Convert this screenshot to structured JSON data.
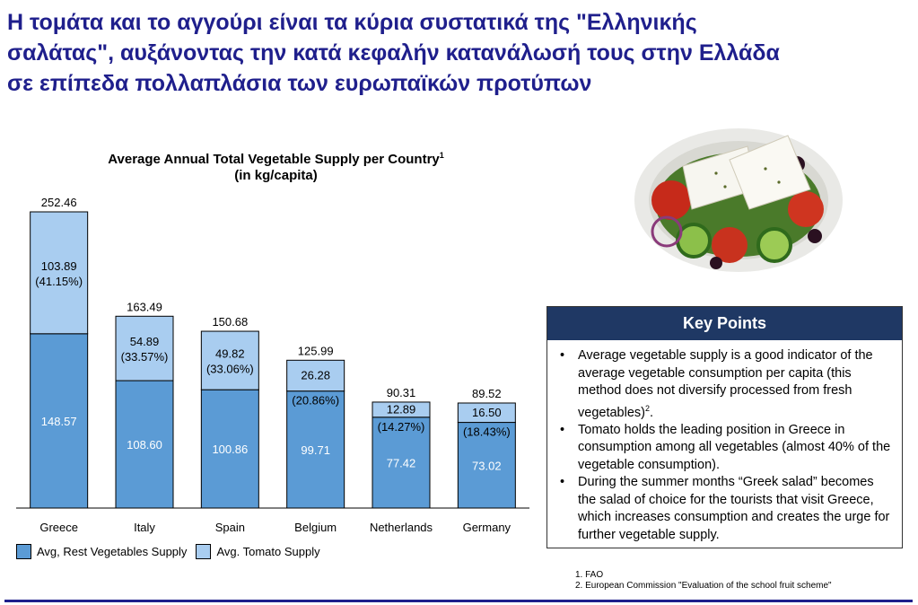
{
  "headline": {
    "lines": [
      "Η τομάτα και το αγγούρι είναι τα κύρια συστατικά της \"Ελληνικής",
      "σαλάτας\", αυξάνοντας την κατά κεφαλήν κατανάλωσή τους στην Ελλάδα",
      "σε επίπεδα πολλαπλάσια των ευρωπαϊκών προτύπων"
    ]
  },
  "chart_data": {
    "type": "bar",
    "stacked": true,
    "title": "Average Annual Total Vegetable Supply per Country",
    "title_footnote": "1",
    "subtitle": "(in kg/capita)",
    "categories": [
      "Greece",
      "Italy",
      "Spain",
      "Belgium",
      "Netherlands",
      "Germany"
    ],
    "totals": [
      "252.46",
      "163.49",
      "150.68",
      "125.99",
      "90.31",
      "89.52"
    ],
    "series": [
      {
        "name": "Avg, Rest Vegetables Supply",
        "color": "#5b9bd5",
        "values": [
          148.57,
          108.6,
          100.86,
          99.71,
          77.42,
          73.02
        ],
        "labels": [
          "148.57",
          "108.60",
          "100.86",
          "99.71",
          "77.42",
          "73.02"
        ]
      },
      {
        "name": "Avg. Tomato Supply",
        "color": "#a9cdf0",
        "values": [
          103.89,
          54.89,
          49.82,
          26.28,
          12.89,
          16.5
        ],
        "labels": [
          "103.89",
          "54.89",
          "49.82",
          "26.28",
          "12.89",
          "16.50"
        ],
        "shares": [
          "(41.15%)",
          "(33.57%)",
          "(33.06%)",
          "(20.86%)",
          "(14.27%)",
          "(18.43%)"
        ]
      }
    ],
    "ylim": [
      0,
      252.46
    ],
    "grid": false,
    "legend": "bottom-left"
  },
  "photo": {
    "icon": "greek-salad-photo"
  },
  "key_points": {
    "title": "Key Points",
    "items": [
      {
        "text": "Average vegetable supply is a good indicator of the average vegetable consumption per capita (this method does not diversify processed from fresh vegetables)",
        "footnote": "2",
        "suffix": "."
      },
      {
        "text": "Tomato holds the leading position in Greece in consumption among all vegetables (almost 40% of the vegetable consumption).",
        "footnote": "",
        "suffix": ""
      },
      {
        "text": "During the summer months “Greek salad” becomes the salad of choice for the tourists that visit Greece, which increases consumption and creates the urge for further vegetable supply.",
        "footnote": "",
        "suffix": ""
      }
    ]
  },
  "footnotes": [
    "1. FAO",
    "2. European Commission \"Evaluation of the school fruit scheme\""
  ],
  "colors": {
    "headline": "#1f1f8c",
    "key_header": "#1f3864"
  }
}
